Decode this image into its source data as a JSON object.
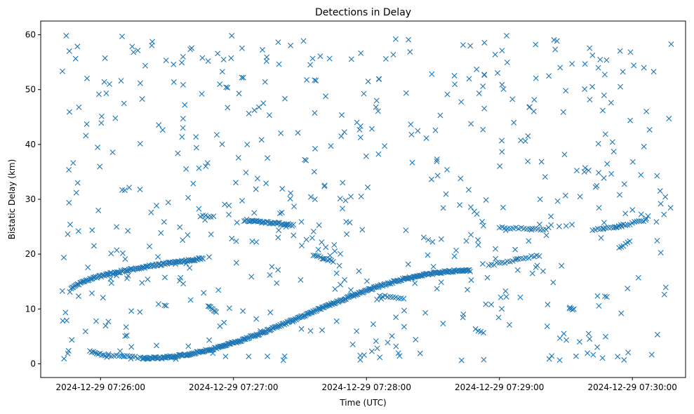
{
  "chart_data": {
    "type": "scatter",
    "title": "Detections in Delay",
    "xlabel": "Time (UTC)",
    "ylabel": "Bistatic Delay (km)",
    "marker": "x",
    "color": "#1f77b4",
    "xlim_minutes": [
      -0.45,
      4.4
    ],
    "ylim": [
      -2.5,
      62.5
    ],
    "xticks": [
      {
        "value": 0,
        "label": "2024-12-29 07:26:00"
      },
      {
        "value": 1,
        "label": "2024-12-29 07:27:00"
      },
      {
        "value": 2,
        "label": "2024-12-29 07:28:00"
      },
      {
        "value": 3,
        "label": "2024-12-29 07:29:00"
      },
      {
        "value": 4,
        "label": "2024-12-29 07:30:00"
      }
    ],
    "yticks": [
      0,
      10,
      20,
      30,
      40,
      50,
      60
    ],
    "x_units": "minutes after 2024-12-29 07:26:00",
    "tracks": [
      {
        "name": "track-a",
        "x_start": -0.23,
        "x_end": 0.77,
        "y_start": 13.0,
        "y_end": 19.2,
        "shape": "sqrt",
        "count": 120
      },
      {
        "name": "track-b",
        "x_start": -0.08,
        "x_end": 0.06,
        "y_start": 2.3,
        "y_end": 1.3,
        "shape": "linear",
        "count": 12
      },
      {
        "name": "track-c",
        "x_start": 0.06,
        "x_end": 0.32,
        "y_start": 1.6,
        "y_end": 1.0,
        "shape": "linear",
        "count": 14
      },
      {
        "name": "track-d",
        "x_start": 0.32,
        "x_end": 2.78,
        "y_start": 1.0,
        "y_end": 17.0,
        "shape": "sigmoid",
        "count": 330
      },
      {
        "name": "track-e",
        "x_start": 0.81,
        "x_end": 0.87,
        "y_start": 10.5,
        "y_end": 9.5,
        "shape": "linear",
        "count": 8
      },
      {
        "name": "track-f",
        "x_start": 0.75,
        "x_end": 0.85,
        "y_start": 27.0,
        "y_end": 26.8,
        "shape": "linear",
        "count": 6
      },
      {
        "name": "track-g",
        "x_start": 1.08,
        "x_end": 1.45,
        "y_start": 26.2,
        "y_end": 25.3,
        "shape": "linear",
        "count": 40
      },
      {
        "name": "track-h",
        "x_start": 1.6,
        "x_end": 1.75,
        "y_start": 19.8,
        "y_end": 18.7,
        "shape": "linear",
        "count": 12
      },
      {
        "name": "track-i",
        "x_start": 2.1,
        "x_end": 2.28,
        "y_start": 12.5,
        "y_end": 11.7,
        "shape": "linear",
        "count": 10
      },
      {
        "name": "track-j",
        "x_start": 2.92,
        "x_end": 3.3,
        "y_start": 18.0,
        "y_end": 19.8,
        "shape": "linear",
        "count": 20
      },
      {
        "name": "track-k",
        "x_start": 3.0,
        "x_end": 3.35,
        "y_start": 24.8,
        "y_end": 24.5,
        "shape": "linear",
        "count": 18
      },
      {
        "name": "track-l",
        "x_start": 3.7,
        "x_end": 3.92,
        "y_start": 24.5,
        "y_end": 24.9,
        "shape": "linear",
        "count": 12
      },
      {
        "name": "track-m",
        "x_start": 3.88,
        "x_end": 4.1,
        "y_start": 25.0,
        "y_end": 26.2,
        "shape": "linear",
        "count": 14
      },
      {
        "name": "track-n",
        "x_start": 3.9,
        "x_end": 3.98,
        "y_start": 21.0,
        "y_end": 22.5,
        "shape": "linear",
        "count": 6
      },
      {
        "name": "track-o",
        "x_start": 2.82,
        "x_end": 2.88,
        "y_start": 6.2,
        "y_end": 5.6,
        "shape": "linear",
        "count": 4
      },
      {
        "name": "track-p",
        "x_start": 3.53,
        "x_end": 3.56,
        "y_start": 10.2,
        "y_end": 9.8,
        "shape": "linear",
        "count": 4
      }
    ],
    "clutter": {
      "count": 560,
      "x_range": [
        -0.3,
        4.3
      ],
      "y_range": [
        0.5,
        60
      ],
      "seed": 20241229
    }
  }
}
